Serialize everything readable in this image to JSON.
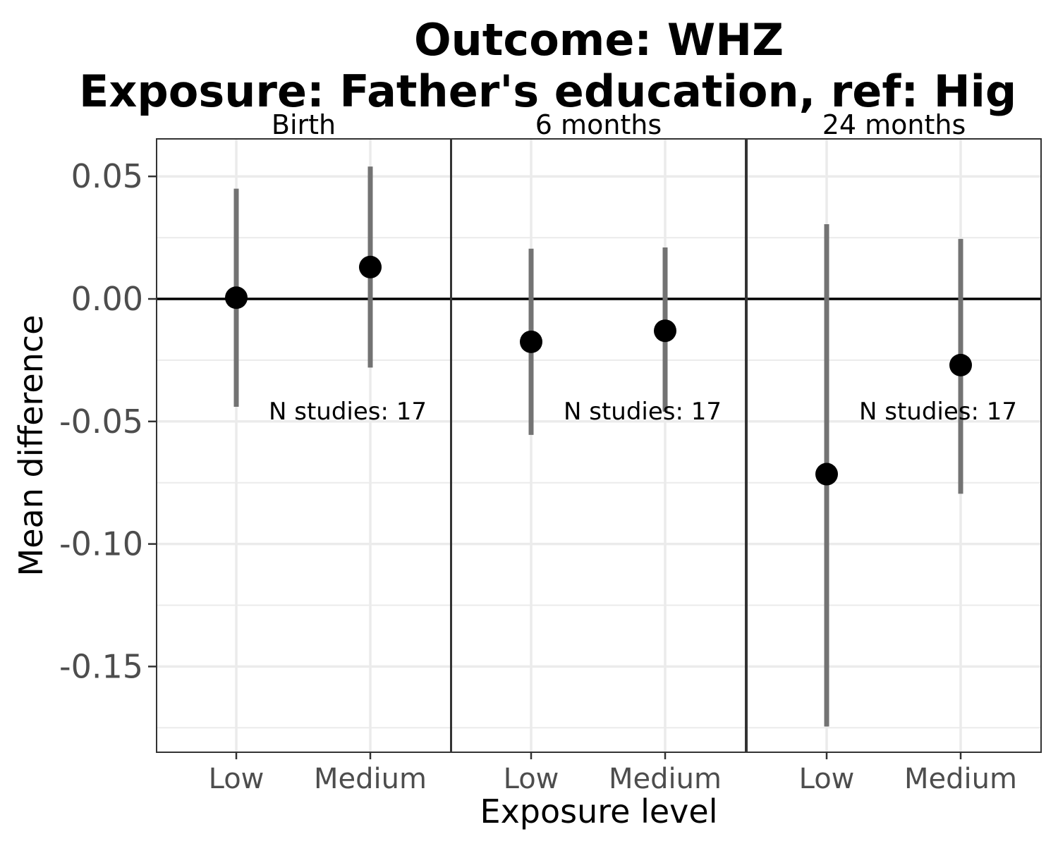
{
  "chart_data": {
    "type": "scatter",
    "subtype": "point-range-faceted",
    "title": "Outcome: WHZ",
    "subtitle": "Exposure: Father's education, ref: Hig",
    "xlabel": "Exposure level",
    "ylabel": "Mean difference",
    "categories": [
      "Low",
      "Medium"
    ],
    "ylim": [
      -0.185,
      0.065
    ],
    "yticks": [
      0.05,
      0.0,
      -0.05,
      -0.1,
      -0.15
    ],
    "ytick_labels": [
      "0.05",
      "0.00",
      "-0.05",
      "-0.10",
      "-0.15"
    ],
    "reference_line": 0,
    "grid": true,
    "colors": {
      "point": "#000000",
      "interval": "#737373",
      "grid": "#ebebeb",
      "frame": "#333333"
    },
    "facets": [
      {
        "label": "Birth",
        "annotation": "N studies: 17",
        "points": [
          {
            "category": "Low",
            "estimate": 0.0005,
            "lower": -0.044,
            "upper": 0.045
          },
          {
            "category": "Medium",
            "estimate": 0.013,
            "lower": -0.028,
            "upper": 0.054
          }
        ]
      },
      {
        "label": "6 months",
        "annotation": "N studies: 17",
        "points": [
          {
            "category": "Low",
            "estimate": -0.0175,
            "lower": -0.0555,
            "upper": 0.0205
          },
          {
            "category": "Medium",
            "estimate": -0.013,
            "lower": -0.046,
            "upper": 0.021
          }
        ]
      },
      {
        "label": "24 months",
        "annotation": "N studies: 17",
        "points": [
          {
            "category": "Low",
            "estimate": -0.0715,
            "lower": -0.1745,
            "upper": 0.0305
          },
          {
            "category": "Medium",
            "estimate": -0.027,
            "lower": -0.0795,
            "upper": 0.0245
          }
        ]
      }
    ]
  }
}
